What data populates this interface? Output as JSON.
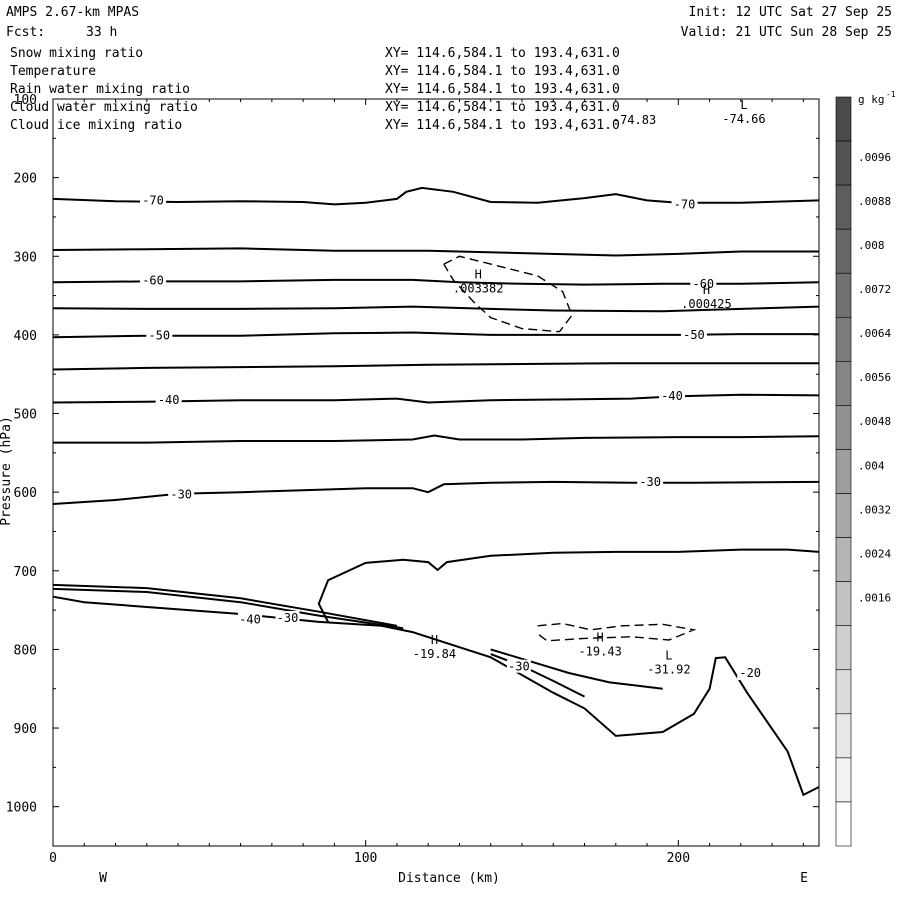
{
  "header": {
    "model": "AMPS 2.67-km MPAS",
    "fcst_label": "Fcst:",
    "fcst_value": "33 h",
    "init": "Init: 12 UTC Sat 27 Sep 25",
    "valid": "Valid: 21 UTC Sun 28 Sep 25"
  },
  "fields": [
    {
      "name": "Snow mixing ratio",
      "xy": "XY= 114.6,584.1 to 193.4,631.0",
      "color": "#000000"
    },
    {
      "name": "Temperature",
      "xy": "XY= 114.6,584.1 to 193.4,631.0",
      "color": "#000000"
    },
    {
      "name": "Rain water mixing ratio",
      "xy": "XY= 114.6,584.1 to 193.4,631.0",
      "color": "#dd0000"
    },
    {
      "name": "Cloud water mixing ratio",
      "xy": "XY= 114.6,584.1 to 193.4,631.0",
      "color": "#0000cc"
    },
    {
      "name": "Cloud ice mixing ratio",
      "xy": "XY= 114.6,584.1 to 193.4,631.0",
      "color": "#000000"
    }
  ],
  "chart_data": {
    "type": "contour",
    "xlabel": "Distance (km)",
    "ylabel": "Pressure (hPa)",
    "xlim": [
      0,
      245
    ],
    "ylim": [
      1050,
      100
    ],
    "x_ticks": [
      0,
      100,
      200
    ],
    "y_ticks": [
      100,
      200,
      300,
      400,
      500,
      600,
      700,
      800,
      900,
      1000
    ],
    "x_end_labels": {
      "left": "W",
      "right": "E"
    },
    "colorbar": {
      "units": "g kg",
      "units_exp": "-1",
      "levels": [
        ".0096",
        ".0088",
        ".008",
        ".0072",
        ".0064",
        ".0056",
        ".0048",
        ".004",
        ".0032",
        ".0024",
        ".0016"
      ],
      "shade_colors": [
        "#4a4a4a",
        "#535353",
        "#5d5d5d",
        "#676767",
        "#717171",
        "#7b7b7b",
        "#868686",
        "#919191",
        "#9d9d9d",
        "#a9a9a9",
        "#b5b5b5",
        "#c2c2c2",
        "#cfcfcf",
        "#dcdcdc",
        "#e8e8e8",
        "#f3f3f3",
        "#ffffff"
      ]
    },
    "temperature_contours": [
      {
        "value": -70,
        "points": [
          [
            0,
            227
          ],
          [
            20,
            230
          ],
          [
            40,
            231
          ],
          [
            60,
            230
          ],
          [
            80,
            231
          ],
          [
            90,
            234
          ],
          [
            100,
            232
          ],
          [
            110,
            227
          ],
          [
            113,
            218
          ],
          [
            118,
            213
          ],
          [
            128,
            218
          ],
          [
            140,
            231
          ],
          [
            155,
            232
          ],
          [
            170,
            226
          ],
          [
            180,
            221
          ],
          [
            190,
            229
          ],
          [
            200,
            232
          ],
          [
            220,
            232
          ],
          [
            245,
            229
          ]
        ],
        "labels": [
          [
            32,
            229,
            "-70"
          ],
          [
            202,
            234,
            "-70"
          ]
        ]
      },
      {
        "value": -65,
        "points": [
          [
            0,
            292
          ],
          [
            30,
            291
          ],
          [
            60,
            290
          ],
          [
            90,
            293
          ],
          [
            120,
            293
          ],
          [
            150,
            296
          ],
          [
            180,
            299
          ],
          [
            200,
            297
          ],
          [
            220,
            294
          ],
          [
            245,
            294
          ]
        ],
        "labels": []
      },
      {
        "value": -60,
        "points": [
          [
            0,
            333
          ],
          [
            30,
            332
          ],
          [
            60,
            332
          ],
          [
            90,
            330
          ],
          [
            115,
            330
          ],
          [
            130,
            333
          ],
          [
            150,
            335
          ],
          [
            170,
            336
          ],
          [
            195,
            335
          ],
          [
            220,
            335
          ],
          [
            245,
            333
          ]
        ],
        "labels": [
          [
            32,
            331,
            "-60"
          ],
          [
            208,
            335,
            "-60"
          ]
        ]
      },
      {
        "value": -55,
        "points": [
          [
            0,
            366
          ],
          [
            30,
            367
          ],
          [
            60,
            367
          ],
          [
            90,
            366
          ],
          [
            115,
            364
          ],
          [
            140,
            367
          ],
          [
            160,
            369
          ],
          [
            195,
            370
          ],
          [
            220,
            367
          ],
          [
            245,
            364
          ]
        ],
        "labels": []
      },
      {
        "value": -50,
        "points": [
          [
            0,
            403
          ],
          [
            30,
            401
          ],
          [
            60,
            401
          ],
          [
            90,
            398
          ],
          [
            115,
            397
          ],
          [
            140,
            400
          ],
          [
            165,
            400
          ],
          [
            200,
            400
          ],
          [
            220,
            399
          ],
          [
            245,
            399
          ]
        ],
        "labels": [
          [
            34,
            401,
            "-50"
          ],
          [
            205,
            400,
            "-50"
          ]
        ]
      },
      {
        "value": -45,
        "points": [
          [
            0,
            444
          ],
          [
            30,
            442
          ],
          [
            60,
            441
          ],
          [
            90,
            440
          ],
          [
            120,
            438
          ],
          [
            150,
            437
          ],
          [
            180,
            436
          ],
          [
            210,
            436
          ],
          [
            245,
            436
          ]
        ],
        "labels": []
      },
      {
        "value": -40,
        "points": [
          [
            0,
            486
          ],
          [
            30,
            485
          ],
          [
            60,
            483
          ],
          [
            90,
            483
          ],
          [
            110,
            481
          ],
          [
            120,
            486
          ],
          [
            140,
            483
          ],
          [
            165,
            482
          ],
          [
            185,
            481
          ],
          [
            200,
            478
          ],
          [
            220,
            476
          ],
          [
            245,
            477
          ]
        ],
        "labels": [
          [
            37,
            483,
            "-40"
          ],
          [
            198,
            478,
            "-40"
          ]
        ]
      },
      {
        "value": -35,
        "points": [
          [
            0,
            537
          ],
          [
            30,
            537
          ],
          [
            60,
            535
          ],
          [
            90,
            535
          ],
          [
            115,
            533
          ],
          [
            122,
            528
          ],
          [
            130,
            533
          ],
          [
            150,
            533
          ],
          [
            170,
            531
          ],
          [
            200,
            530
          ],
          [
            220,
            530
          ],
          [
            245,
            529
          ]
        ],
        "labels": []
      },
      {
        "value": -30,
        "points": [
          [
            0,
            615
          ],
          [
            20,
            610
          ],
          [
            40,
            602
          ],
          [
            60,
            600
          ],
          [
            85,
            597
          ],
          [
            100,
            595
          ],
          [
            115,
            595
          ],
          [
            120,
            600
          ],
          [
            125,
            590
          ],
          [
            140,
            588
          ],
          [
            160,
            587
          ],
          [
            185,
            588
          ],
          [
            205,
            588
          ],
          [
            245,
            587
          ]
        ],
        "labels": [
          [
            41,
            603,
            "-30"
          ],
          [
            191,
            587,
            "-30"
          ]
        ]
      },
      {
        "value": -25,
        "points": [
          [
            88,
            765
          ],
          [
            85,
            742
          ],
          [
            88,
            712
          ],
          [
            100,
            690
          ],
          [
            112,
            686
          ],
          [
            120,
            689
          ],
          [
            123,
            699
          ],
          [
            126,
            689
          ],
          [
            140,
            681
          ],
          [
            160,
            677
          ],
          [
            180,
            676
          ],
          [
            200,
            676
          ],
          [
            220,
            673
          ],
          [
            235,
            673
          ],
          [
            245,
            676
          ]
        ],
        "labels": []
      },
      {
        "value": -20,
        "points": [
          [
            0,
            733
          ],
          [
            10,
            740
          ],
          [
            30,
            746
          ],
          [
            60,
            755
          ],
          [
            85,
            765
          ],
          [
            105,
            770
          ],
          [
            115,
            778
          ],
          [
            140,
            810
          ],
          [
            160,
            855
          ],
          [
            170,
            875
          ],
          [
            180,
            910
          ],
          [
            195,
            905
          ],
          [
            205,
            882
          ],
          [
            210,
            850
          ],
          [
            212,
            811
          ],
          [
            215,
            810
          ],
          [
            222,
            855
          ],
          [
            235,
            930
          ],
          [
            240,
            985
          ],
          [
            245,
            975
          ]
        ],
        "labels": [
          [
            223,
            830,
            "-20"
          ]
        ]
      }
    ],
    "cutoff_lines": [
      [
        [
          0,
          718
        ],
        [
          30,
          722
        ],
        [
          60,
          735
        ],
        [
          85,
          752
        ],
        [
          110,
          770
        ]
      ],
      [
        [
          0,
          723
        ],
        [
          30,
          727
        ],
        [
          60,
          740
        ],
        [
          85,
          757
        ],
        [
          112,
          773
        ]
      ],
      [
        [
          140,
          800
        ],
        [
          155,
          818
        ],
        [
          165,
          830
        ],
        [
          178,
          842
        ],
        [
          195,
          850
        ]
      ],
      [
        [
          140,
          806
        ],
        [
          150,
          821
        ],
        [
          160,
          840
        ],
        [
          170,
          860
        ]
      ]
    ],
    "snow_dashed_contours": [
      {
        "value": 0.0016,
        "points": [
          [
            125,
            310
          ],
          [
            130,
            300
          ],
          [
            140,
            310
          ],
          [
            155,
            325
          ],
          [
            163,
            345
          ],
          [
            166,
            375
          ],
          [
            162,
            396
          ],
          [
            150,
            392
          ],
          [
            140,
            378
          ],
          [
            135,
            360
          ],
          [
            128,
            330
          ],
          [
            125,
            310
          ]
        ]
      },
      {
        "value": 0.0016,
        "points": [
          [
            155,
            770
          ],
          [
            163,
            767
          ],
          [
            172,
            775
          ],
          [
            182,
            770
          ],
          [
            195,
            768
          ],
          [
            205,
            775
          ],
          [
            197,
            788
          ],
          [
            185,
            784
          ],
          [
            170,
            786
          ],
          [
            158,
            789
          ],
          [
            155,
            780
          ]
        ]
      }
    ],
    "annotations": [
      {
        "x": 136,
        "y": 328,
        "kind": "H",
        "text": ".003382"
      },
      {
        "x": 209,
        "y": 348,
        "kind": "H",
        "text": ".000425"
      },
      {
        "x": 122,
        "y": 793,
        "kind": "H",
        "text": "-19.84"
      },
      {
        "x": 175,
        "y": 790,
        "kind": "H",
        "text": "-19.43"
      },
      {
        "x": 197,
        "y": 813,
        "kind": "L",
        "text": "-31.92"
      },
      {
        "x": 221,
        "y": 113,
        "kind": "L",
        "text": "-74.66"
      },
      {
        "x": 186,
        "y": 114,
        "kind": "",
        "text": "-74.83"
      }
    ],
    "extra_labels": [
      {
        "x": 63,
        "y": 762,
        "text": "-40"
      },
      {
        "x": 75,
        "y": 760,
        "text": "-30"
      },
      {
        "x": 149,
        "y": 822,
        "text": "-30"
      }
    ]
  }
}
